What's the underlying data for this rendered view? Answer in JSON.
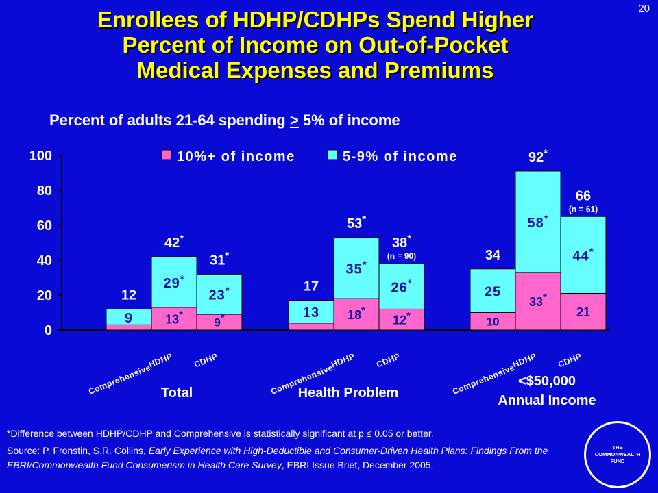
{
  "slide_number": "20",
  "title_lines": [
    "Enrollees of HDHP/CDHPs Spend Higher",
    "Percent of Income on Out-of-Pocket",
    "Medical Expenses and Premiums"
  ],
  "subtitle": {
    "before": "Percent of adults 21-64 spending ",
    "symbol": ">",
    "after": " 5% of income"
  },
  "footnote": "*Difference between HDHP/CDHP and Comprehensive is statistically significant at p ≤ 0.05 or better.",
  "source": {
    "prefix": "Source: P. Fronstin, S.R. Collins, ",
    "italic": "Early Experience with High-Deductible and Consumer-Driven Health Plans: Findings From the EBRI/Commonwealth Fund Consumerism in Health Care Survey",
    "suffix": ", EBRI Issue Brief, December 2005."
  },
  "logo": [
    "THE",
    "COMMONWEALTH",
    "FUND"
  ],
  "colors": {
    "background": "#0a0ad6",
    "title": "#ffff00",
    "series_10plus": "#ff66cc",
    "series_5to9": "#66ffff",
    "label_text": "#1010a0"
  },
  "chart_data": {
    "type": "bar",
    "stacked": true,
    "ylim": [
      0,
      100
    ],
    "yticks": [
      0,
      20,
      40,
      60,
      80,
      100
    ],
    "legend_position": "top",
    "series": [
      {
        "name": "10%+ of income",
        "color": "#ff66cc"
      },
      {
        "name": "5-9% of income",
        "color": "#66ffff"
      }
    ],
    "groups": [
      {
        "name": "Total",
        "bars": [
          {
            "category": "Comprehensive",
            "values": [
              3,
              9
            ],
            "labels": [
              "",
              "9"
            ],
            "sig": [
              false,
              false
            ],
            "total": "12",
            "total_sig": false,
            "note": ""
          },
          {
            "category": "HDHP",
            "values": [
              13,
              29
            ],
            "labels": [
              "13",
              "29"
            ],
            "sig": [
              true,
              true
            ],
            "total": "42",
            "total_sig": true,
            "note": ""
          },
          {
            "category": "CDHP",
            "values": [
              9,
              23
            ],
            "labels": [
              "9",
              "23"
            ],
            "sig": [
              true,
              true
            ],
            "total": "31",
            "total_sig": true,
            "note": ""
          }
        ]
      },
      {
        "name": "Health Problem",
        "bars": [
          {
            "category": "Comprehensive",
            "values": [
              4,
              13
            ],
            "labels": [
              "",
              "13"
            ],
            "sig": [
              false,
              false
            ],
            "total": "17",
            "total_sig": false,
            "note": ""
          },
          {
            "category": "HDHP",
            "values": [
              18,
              35
            ],
            "labels": [
              "18",
              "35"
            ],
            "sig": [
              true,
              true
            ],
            "total": "53",
            "total_sig": true,
            "note": ""
          },
          {
            "category": "CDHP",
            "values": [
              12,
              26
            ],
            "labels": [
              "12",
              "26"
            ],
            "sig": [
              true,
              true
            ],
            "total": "38",
            "total_sig": true,
            "note": "(n = 90)"
          }
        ]
      },
      {
        "name": "<$50,000 Annual Income",
        "bars": [
          {
            "category": "Comprehensive",
            "values": [
              10,
              25
            ],
            "labels": [
              "10",
              "25"
            ],
            "sig": [
              false,
              false
            ],
            "total": "34",
            "total_sig": false,
            "note": ""
          },
          {
            "category": "HDHP",
            "values": [
              33,
              58
            ],
            "labels": [
              "33",
              "58"
            ],
            "sig": [
              true,
              true
            ],
            "total": "92",
            "total_sig": true,
            "note": ""
          },
          {
            "category": "CDHP",
            "values": [
              21,
              44
            ],
            "labels": [
              "21",
              "44"
            ],
            "sig": [
              false,
              true
            ],
            "total": "66",
            "total_sig": false,
            "note": "(n = 61)"
          }
        ]
      }
    ],
    "group_labels": [
      {
        "lines": [
          "Total"
        ]
      },
      {
        "lines": [
          "Health Problem"
        ]
      },
      {
        "lines": [
          "<$50,000",
          "Annual Income"
        ]
      }
    ]
  }
}
